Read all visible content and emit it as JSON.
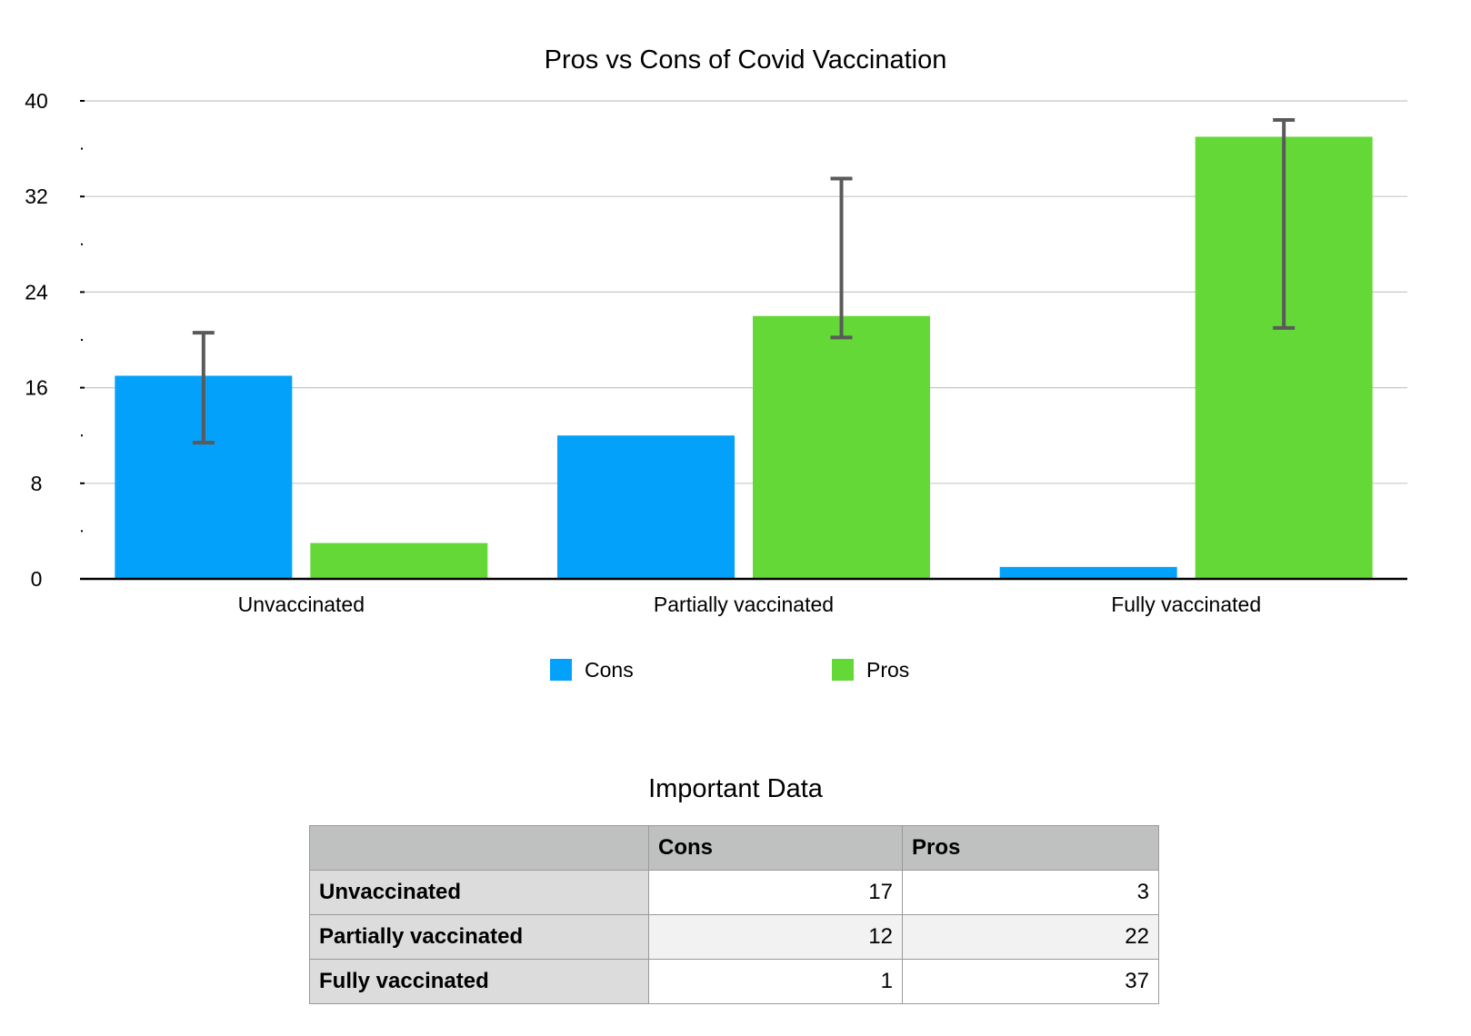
{
  "chart_data": {
    "type": "bar",
    "title": "Pros vs Cons of Covid Vaccination",
    "xlabel": "",
    "ylabel": "",
    "categories": [
      "Unvaccinated",
      "Partially vaccinated",
      "Fully vaccinated"
    ],
    "series": [
      {
        "name": "Cons",
        "color": "#03a1fa",
        "values": [
          17,
          12,
          1
        ],
        "error_bars": [
          [
            11.4,
            20.6
          ],
          null,
          null
        ]
      },
      {
        "name": "Pros",
        "color": "#63d837",
        "values": [
          3,
          22,
          37
        ],
        "error_bars": [
          null,
          [
            20.2,
            33.5
          ],
          [
            21,
            38.4
          ]
        ]
      }
    ],
    "ylim": [
      0,
      40
    ],
    "yticks": [
      "0",
      "8",
      "16",
      "24",
      "32",
      "40"
    ],
    "ytick_values": [
      0,
      8,
      16,
      24,
      32,
      40
    ],
    "grid": true,
    "legend_position": "bottom-center"
  },
  "table": {
    "title": "Important Data",
    "headers": [
      "",
      "Cons",
      "Pros"
    ],
    "rows": [
      {
        "label": "Unvaccinated",
        "values": [
          "17",
          "3"
        ]
      },
      {
        "label": "Partially vaccinated",
        "values": [
          "12",
          "22"
        ]
      },
      {
        "label": "Fully vaccinated",
        "values": [
          "1",
          "37"
        ]
      }
    ]
  }
}
